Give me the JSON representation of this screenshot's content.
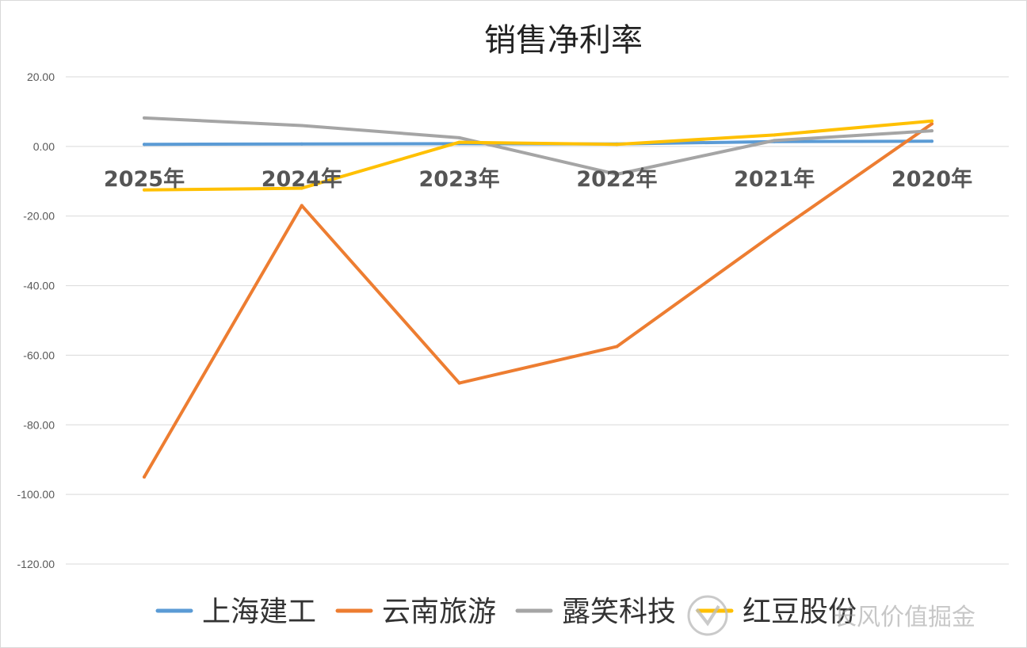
{
  "chart_data": {
    "type": "line",
    "title": "销售净利率",
    "categories": [
      "2025年",
      "2024年",
      "2023年",
      "2022年",
      "2021年",
      "2020年"
    ],
    "ylim": [
      -120,
      20
    ],
    "yticks": [
      "20.00",
      "0.00",
      "-20.00",
      "-40.00",
      "-60.00",
      "-80.00",
      "-100.00",
      "-120.00"
    ],
    "ytick_values": [
      20,
      0,
      -20,
      -40,
      -60,
      -80,
      -100,
      -120
    ],
    "grid": true,
    "legend_position": "bottom",
    "series": [
      {
        "name": "上海建工",
        "color": "#5B9BD5",
        "values": [
          0.6,
          0.7,
          0.8,
          0.7,
          1.4,
          1.5
        ]
      },
      {
        "name": "云南旅游",
        "color": "#ED7D31",
        "values": [
          -95.0,
          -17.0,
          -68.0,
          -57.5,
          -25.0,
          6.5
        ]
      },
      {
        "name": "露笑科技",
        "color": "#A5A5A5",
        "values": [
          8.2,
          6.0,
          2.5,
          -8.0,
          1.7,
          4.5
        ]
      },
      {
        "name": "红豆股份",
        "color": "#FFC000",
        "values": [
          -12.5,
          -12.0,
          1.2,
          0.6,
          3.3,
          7.3
        ]
      }
    ]
  },
  "watermark": {
    "text": "长风价值掘金",
    "icon": "snowball-logo-icon"
  }
}
